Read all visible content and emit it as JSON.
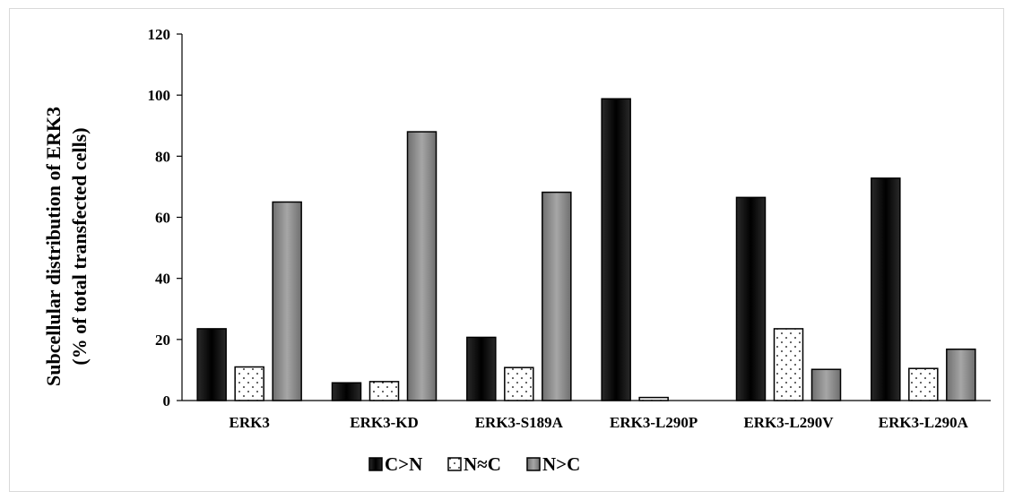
{
  "chart_data": {
    "type": "bar",
    "title": "",
    "xlabel": "",
    "ylabel_line1": "Subcellular distribution of ERK3",
    "ylabel_line2": "(% of total transfected cells)",
    "ylim": [
      0,
      120
    ],
    "yticks": [
      0,
      20,
      40,
      60,
      80,
      100,
      120
    ],
    "categories": [
      "ERK3",
      "ERK3-KD",
      "ERK3-S189A",
      "ERK3-L290P",
      "ERK3-L290V",
      "ERK3-L290A"
    ],
    "series": [
      {
        "name": "C>N",
        "values": [
          23.5,
          5.8,
          20.7,
          98.8,
          66.5,
          72.8
        ],
        "color": "#1f1f1f",
        "pattern": "solid-dark-gradient"
      },
      {
        "name": "N≈C",
        "values": [
          11.0,
          6.2,
          10.8,
          1.0,
          23.5,
          10.5
        ],
        "color": "#ffffff",
        "pattern": "dots"
      },
      {
        "name": "N>C",
        "values": [
          65.0,
          88.0,
          68.2,
          0,
          10.2,
          16.8
        ],
        "color": "#8c8c8c",
        "pattern": "solid-gray-gradient"
      }
    ],
    "grid": false,
    "legend_position": "bottom-center"
  }
}
